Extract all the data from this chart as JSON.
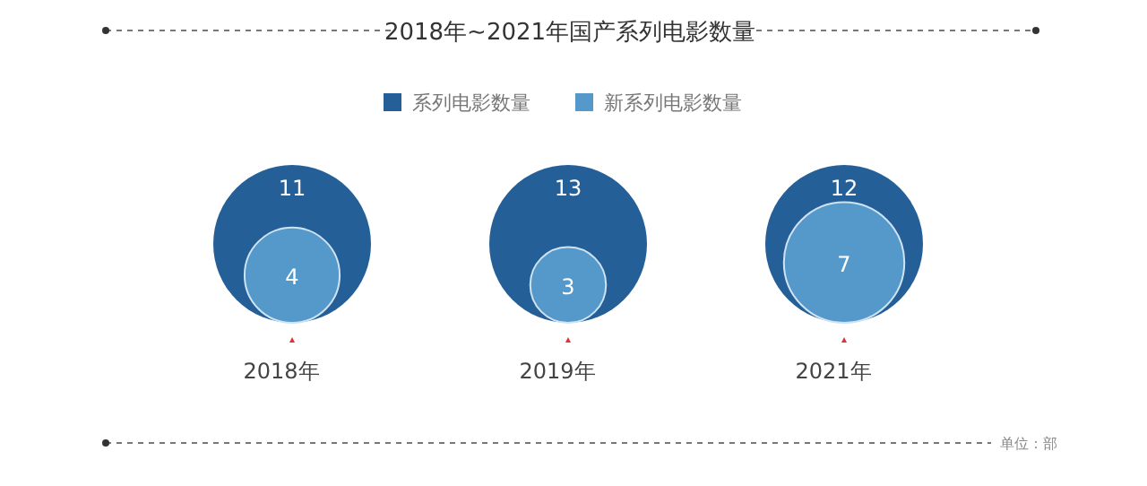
{
  "chart_data": {
    "type": "other",
    "title": "2018年~2021年国产系列电影数量",
    "categories": [
      "2018年",
      "2019年",
      "2021年"
    ],
    "series": [
      {
        "name": "系列电影数量",
        "color": "#255f98",
        "values": [
          11,
          13,
          12
        ]
      },
      {
        "name": "新系列电影数量",
        "color": "#5499c9",
        "values": [
          4,
          3,
          7
        ]
      }
    ],
    "data_labels": true,
    "legend": "top",
    "annotations": [
      "单位：部"
    ]
  }
}
